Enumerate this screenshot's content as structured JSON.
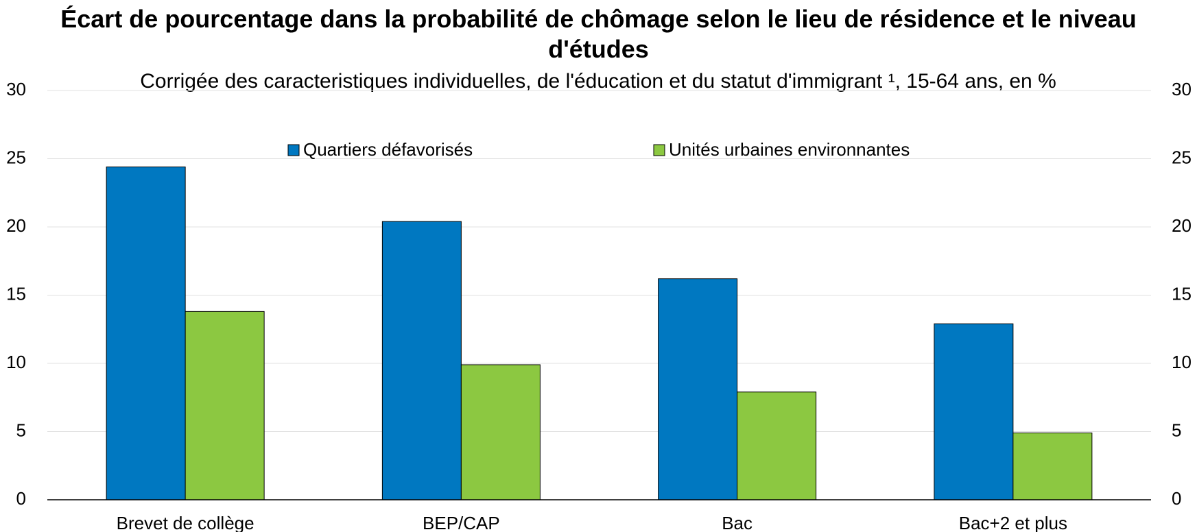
{
  "chart_data": {
    "type": "bar",
    "title": "Écart de pourcentage dans la probabilité de chômage selon le lieu de résidence et le niveau d'études",
    "subtitle": "Corrigée des caracteristiques individuelles, de l'éducation et du statut d'immigrant ¹, 15-64 ans, en %",
    "categories": [
      "Brevet de collège",
      "BEP/CAP",
      "Bac",
      "Bac+2 et plus"
    ],
    "series": [
      {
        "name": "Quartiers défavorisés",
        "color": "#0078c1",
        "values": [
          24.4,
          20.4,
          16.2,
          12.9
        ]
      },
      {
        "name": "Unités urbaines environnantes",
        "color": "#8cc841",
        "values": [
          13.8,
          9.9,
          7.9,
          4.9
        ]
      }
    ],
    "ylim": [
      0,
      30
    ],
    "yticks": [
      0,
      5,
      10,
      15,
      20,
      25,
      30
    ],
    "y2lim": [
      0,
      30
    ],
    "y2ticks": [
      0,
      5,
      10,
      15,
      20,
      25,
      30
    ],
    "grid": true,
    "legend": "top"
  }
}
